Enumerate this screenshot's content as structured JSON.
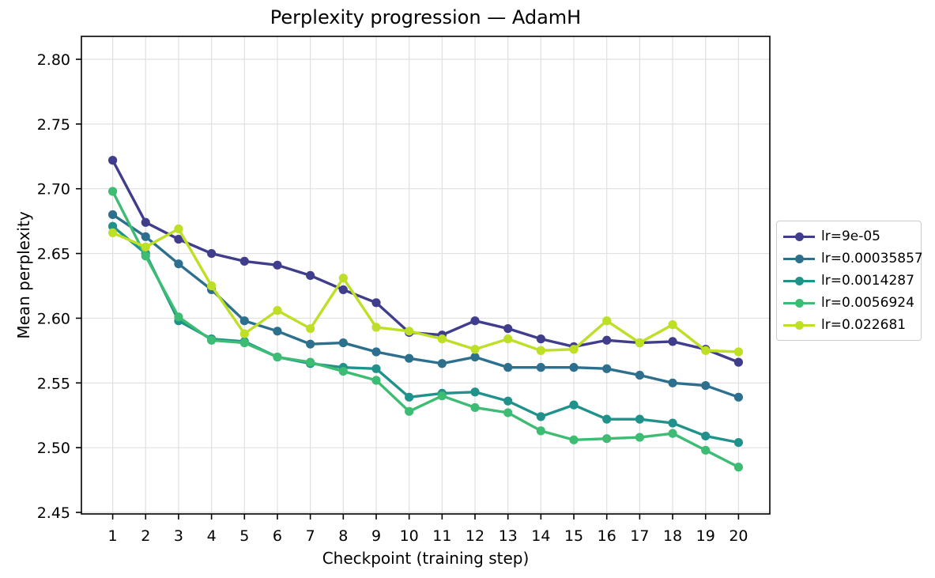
{
  "chart_data": {
    "type": "line",
    "title": "Perplexity progression — AdamH",
    "xlabel": "Checkpoint (training step)",
    "ylabel": "Mean perplexity",
    "x": [
      1,
      2,
      3,
      4,
      5,
      6,
      7,
      8,
      9,
      10,
      11,
      12,
      13,
      14,
      15,
      16,
      17,
      18,
      19,
      20
    ],
    "xticks": [
      1,
      2,
      3,
      4,
      5,
      6,
      7,
      8,
      9,
      10,
      11,
      12,
      13,
      14,
      15,
      16,
      17,
      18,
      19,
      20
    ],
    "yticks": [
      2.45,
      2.5,
      2.55,
      2.6,
      2.65,
      2.7,
      2.75,
      2.8
    ],
    "ylim": [
      2.4488,
      2.8177
    ],
    "xlim_units": [
      0.05,
      20.95
    ],
    "grid": true,
    "legend_position": "outside-center-right",
    "background_color": "#ffffff",
    "grid_color": "#e0e0e0",
    "spine_color": "#000000",
    "series": [
      {
        "name": "lr=9e-05",
        "color": "#3f3d8c",
        "values": [
          2.722,
          2.674,
          2.661,
          2.65,
          2.644,
          2.641,
          2.633,
          2.622,
          2.612,
          2.589,
          2.587,
          2.598,
          2.592,
          2.584,
          2.578,
          2.583,
          2.581,
          2.582,
          2.576,
          2.566
        ]
      },
      {
        "name": "lr=0.00035857",
        "color": "#2d708e",
        "values": [
          2.68,
          2.663,
          2.642,
          2.622,
          2.598,
          2.59,
          2.58,
          2.581,
          2.574,
          2.569,
          2.565,
          2.57,
          2.562,
          2.562,
          2.562,
          2.561,
          2.556,
          2.55,
          2.548,
          2.539
        ]
      },
      {
        "name": "lr=0.0014287",
        "color": "#20928c",
        "values": [
          2.671,
          2.65,
          2.598,
          2.584,
          2.582,
          2.57,
          2.565,
          2.562,
          2.561,
          2.539,
          2.542,
          2.543,
          2.536,
          2.524,
          2.533,
          2.522,
          2.522,
          2.519,
          2.509,
          2.504
        ]
      },
      {
        "name": "lr=0.0056924",
        "color": "#3dbc74",
        "values": [
          2.698,
          2.648,
          2.601,
          2.583,
          2.581,
          2.57,
          2.566,
          2.559,
          2.552,
          2.528,
          2.54,
          2.531,
          2.527,
          2.513,
          2.506,
          2.507,
          2.508,
          2.511,
          2.498,
          2.485
        ]
      },
      {
        "name": "lr=0.022681",
        "color": "#bddf26",
        "values": [
          2.666,
          2.655,
          2.669,
          2.625,
          2.588,
          2.606,
          2.592,
          2.631,
          2.593,
          2.59,
          2.584,
          2.576,
          2.584,
          2.575,
          2.576,
          2.598,
          2.581,
          2.595,
          2.575,
          2.574
        ]
      }
    ]
  }
}
